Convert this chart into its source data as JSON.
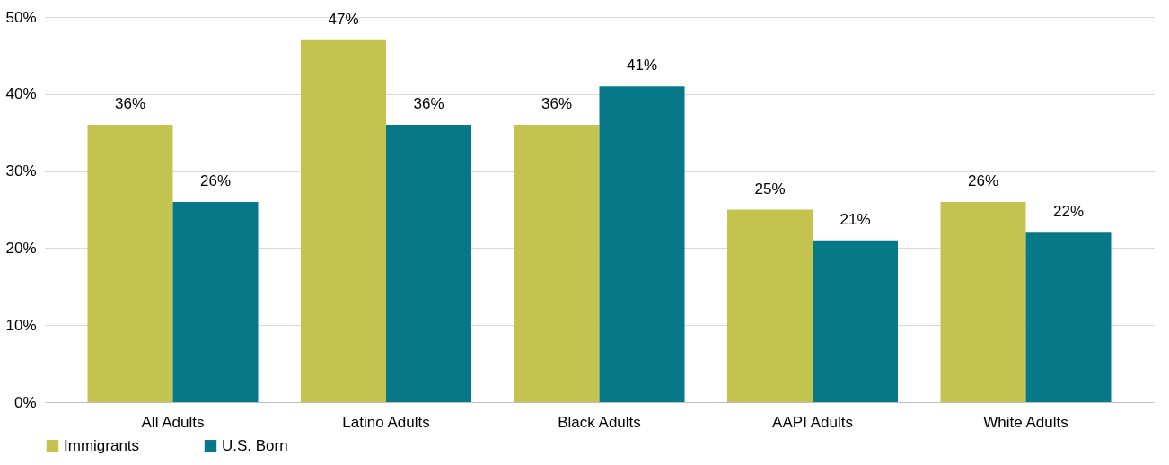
{
  "chart_data": {
    "type": "bar",
    "categories": [
      "All Adults",
      "Latino Adults",
      "Black Adults",
      "AAPI Adults",
      "White Adults"
    ],
    "series": [
      {
        "name": "Immigrants",
        "color": "#c5c350",
        "values": [
          36,
          47,
          36,
          25,
          26
        ],
        "value_labels": [
          "36%",
          "47%",
          "36%",
          "25%",
          "26%"
        ]
      },
      {
        "name": "U.S. Born",
        "color": "#077887",
        "values": [
          26,
          36,
          41,
          21,
          22
        ],
        "value_labels": [
          "26%",
          "36%",
          "41%",
          "21%",
          "22%"
        ]
      }
    ],
    "ylim": [
      0,
      50
    ],
    "yticks": [
      {
        "value": 0,
        "label": "0%"
      },
      {
        "value": 10,
        "label": "10%"
      },
      {
        "value": 20,
        "label": "20%"
      },
      {
        "value": 30,
        "label": "30%"
      },
      {
        "value": 40,
        "label": "40%"
      },
      {
        "value": 50,
        "label": "50%"
      }
    ],
    "grid": "y",
    "legend": "bottom"
  }
}
